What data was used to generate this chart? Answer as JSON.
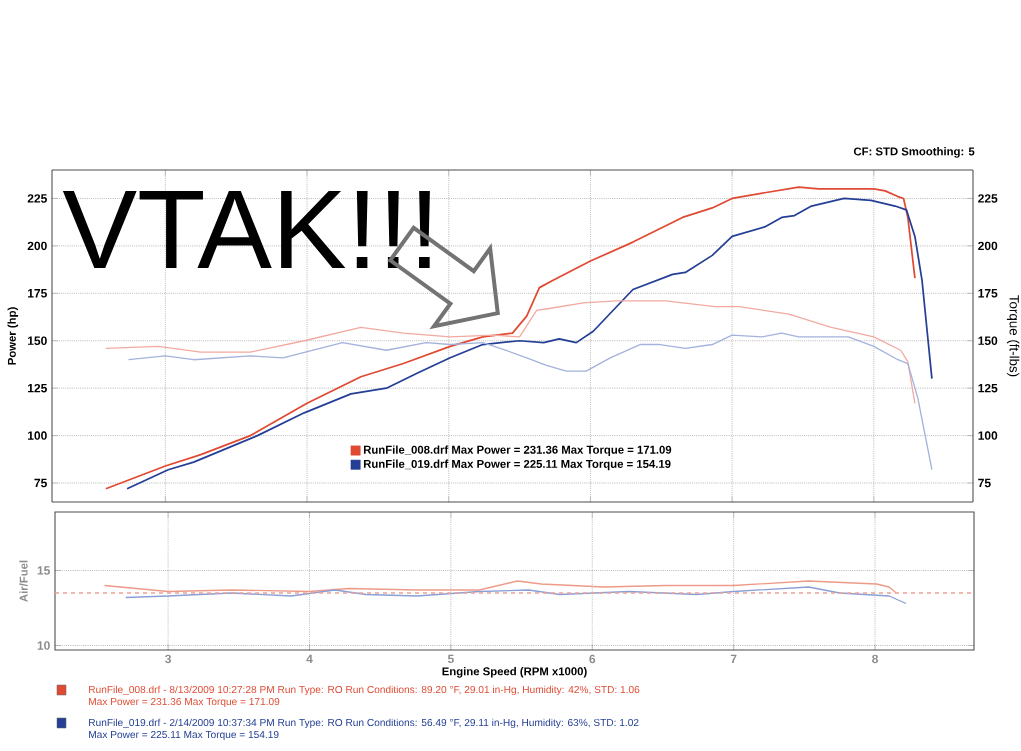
{
  "chart_data": [
    {
      "type": "line",
      "ylabel": "Power (hp)",
      "y2label": "Torque (ft-lbs)",
      "xlim": [
        2.2,
        8.7
      ],
      "xticks": [
        3,
        4,
        5,
        6,
        7,
        8
      ],
      "ylim": [
        65,
        240
      ],
      "yticks": [
        75,
        100,
        125,
        150,
        175,
        200,
        225
      ],
      "y2lim": [
        65,
        240
      ],
      "y2ticks": [
        75,
        100,
        125,
        150,
        175,
        200,
        225
      ],
      "tick_labels": "y",
      "grid": true,
      "legend": "bottom",
      "annotations": [
        "VTAK!!!",
        "CF: STD Smoothing: 5"
      ],
      "series": [
        {
          "name": "RunFile_008.drf Max Power = 231.36 Max Torque = 171.09",
          "color": "#e04a32",
          "x": [
            2.58,
            3.0,
            3.25,
            3.6,
            4.0,
            4.38,
            4.68,
            5.01,
            5.24,
            5.45,
            5.55,
            5.64,
            5.74,
            6.0,
            6.3,
            6.65,
            6.86,
            7.0,
            7.23,
            7.47,
            7.61,
            8.0,
            8.08,
            8.17,
            8.21,
            8.24,
            8.29
          ],
          "values": [
            72,
            84,
            90,
            100,
            117,
            131,
            138,
            147,
            152,
            154,
            163,
            178,
            182,
            192,
            202,
            215,
            220,
            225,
            228,
            231,
            230,
            230,
            229,
            226,
            225,
            215,
            183
          ]
        },
        {
          "name": "RunFile_019.drf Max Power = 225.11 Max Torque = 154.19",
          "color": "#243f95",
          "x": [
            2.73,
            3.02,
            3.2,
            3.65,
            3.98,
            4.31,
            4.56,
            4.78,
            5.01,
            5.24,
            5.5,
            5.67,
            5.78,
            5.9,
            6.02,
            6.3,
            6.58,
            6.67,
            6.86,
            7.0,
            7.23,
            7.35,
            7.44,
            7.56,
            7.79,
            7.98,
            8.15,
            8.23,
            8.29,
            8.34,
            8.41
          ],
          "values": [
            72,
            82,
            86,
            100,
            112,
            122,
            125,
            133,
            141,
            148,
            150,
            149,
            151,
            149,
            155,
            177,
            185,
            186,
            195,
            205,
            210,
            215,
            216,
            221,
            225,
            224,
            221,
            219,
            205,
            182,
            130
          ]
        },
        {
          "color": "#f2aaa0",
          "axis": "y2",
          "x": [
            2.58,
            2.95,
            3.25,
            3.6,
            3.98,
            4.38,
            4.68,
            5.01,
            5.32,
            5.5,
            5.62,
            5.71,
            5.95,
            6.18,
            6.53,
            6.88,
            7.05,
            7.4,
            7.7,
            8.0,
            8.19,
            8.24,
            8.29
          ],
          "values": [
            146,
            147,
            144,
            144,
            150,
            157,
            154,
            152,
            153,
            152,
            166,
            167,
            170,
            171,
            171,
            168,
            168,
            164,
            157,
            152,
            145,
            139,
            117
          ]
        },
        {
          "color": "#a4b2dc",
          "axis": "y2",
          "x": [
            2.74,
            3.0,
            3.2,
            3.6,
            3.83,
            4.25,
            4.56,
            4.84,
            5.01,
            5.24,
            5.4,
            5.55,
            5.69,
            5.83,
            5.97,
            6.14,
            6.35,
            6.49,
            6.67,
            6.86,
            7.0,
            7.21,
            7.35,
            7.47,
            7.7,
            7.82,
            8.0,
            8.17,
            8.24,
            8.31,
            8.41
          ],
          "values": [
            140,
            142,
            140,
            142,
            141,
            149,
            145,
            149,
            148,
            149,
            145,
            141,
            137,
            134,
            134,
            141,
            148,
            148,
            146,
            148,
            153,
            152,
            154,
            152,
            152,
            152,
            147,
            140,
            138,
            120,
            82
          ]
        }
      ]
    },
    {
      "type": "line",
      "xlabel": "Engine Speed (RPM x1000)",
      "ylabel": "Air/Fuel",
      "xlim": [
        2.2,
        8.7
      ],
      "xticks": [
        3,
        4,
        5,
        6,
        7,
        8
      ],
      "ylim": [
        9.7,
        18.9
      ],
      "yticks": [
        10,
        15
      ],
      "grid": true,
      "ref_lines": [
        {
          "axis": "y",
          "value": 13.5,
          "color": "#f0a090",
          "line_style": "dashed"
        }
      ],
      "annotations": [
        "RunFile_008.drf - 8/13/2009 10:27:28 PM Run Type: RO Run Conditions: 89.20 °F, 29.01 in-Hg, Humidity: 42%, STD: 1.06",
        "Max Power = 231.36 Max Torque = 171.09",
        "RunFile_019.drf - 2/14/2009 10:37:34 PM Run Type: RO Run Conditions: 56.49 °F, 29.11 in-Hg, Humidity: 63%, STD: 1.02",
        "Max Power = 225.11 Max Torque = 154.19"
      ],
      "series": [
        {
          "color": "#ee9a88",
          "x": [
            2.55,
            3.0,
            3.45,
            4.0,
            4.28,
            4.76,
            5.2,
            5.47,
            5.64,
            6.08,
            6.52,
            7.0,
            7.53,
            8.01,
            8.1,
            8.15
          ],
          "values": [
            14.0,
            13.6,
            13.7,
            13.6,
            13.8,
            13.7,
            13.7,
            14.3,
            14.1,
            13.9,
            14.0,
            14.0,
            14.3,
            14.1,
            13.9,
            13.5
          ]
        },
        {
          "color": "#8a9fd6",
          "x": [
            2.7,
            3.0,
            3.45,
            3.87,
            4.18,
            4.4,
            4.76,
            5.2,
            5.55,
            5.77,
            6.26,
            6.74,
            7.0,
            7.53,
            7.75,
            8.1,
            8.22
          ],
          "values": [
            13.2,
            13.3,
            13.5,
            13.3,
            13.7,
            13.4,
            13.3,
            13.6,
            13.7,
            13.4,
            13.6,
            13.4,
            13.6,
            13.9,
            13.5,
            13.3,
            12.8
          ]
        }
      ]
    }
  ]
}
